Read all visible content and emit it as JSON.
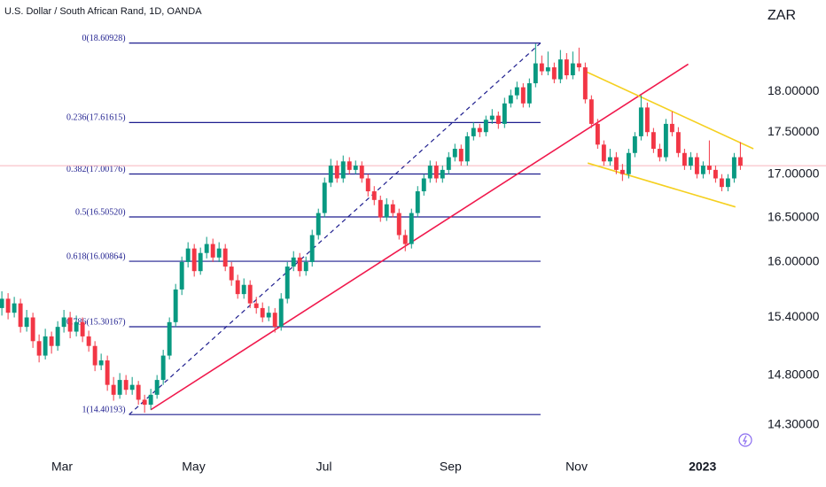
{
  "chart_data": {
    "type": "candlestick",
    "title": "U.S. Dollar / South African Rand, 1D, OANDA",
    "currency": "ZAR",
    "log_scale": true,
    "up_color": "#089981",
    "down_color": "#f23645",
    "last_line_color": "#f7b5bd",
    "xlim": [
      -0.3,
      121.8
    ],
    "xticks": [
      {
        "value": 9.7,
        "label": "Mar"
      },
      {
        "value": 30.9,
        "label": "May"
      },
      {
        "value": 51.9,
        "label": "Jul"
      },
      {
        "value": 72.3,
        "label": "Sep"
      },
      {
        "value": 92.6,
        "label": "Nov"
      },
      {
        "value": 112.9,
        "label": "2023"
      }
    ],
    "ylim": [
      13.7,
      19.17
    ],
    "yticks": [
      {
        "value": 18,
        "label": "18.00000"
      },
      {
        "value": 17.5,
        "label": "17.50000"
      },
      {
        "value": 17,
        "label": "17.00000"
      },
      {
        "value": 16.5,
        "label": "16.50000"
      },
      {
        "value": 16,
        "label": "16.00000"
      },
      {
        "value": 15.4,
        "label": "15.40000"
      },
      {
        "value": 14.8,
        "label": "14.80000"
      },
      {
        "value": 14.3,
        "label": "14.30000"
      }
    ],
    "candles": [
      [
        15.5,
        15.68,
        15.42,
        15.6
      ],
      [
        15.6,
        15.66,
        15.38,
        15.45
      ],
      [
        15.45,
        15.62,
        15.4,
        15.55
      ],
      [
        15.55,
        15.6,
        15.24,
        15.3
      ],
      [
        15.3,
        15.48,
        15.25,
        15.4
      ],
      [
        15.4,
        15.45,
        15.08,
        15.15
      ],
      [
        15.15,
        15.22,
        14.93,
        15.0
      ],
      [
        15.0,
        15.28,
        14.96,
        15.2
      ],
      [
        15.2,
        15.25,
        15.02,
        15.1
      ],
      [
        15.1,
        15.36,
        15.05,
        15.3
      ],
      [
        15.3,
        15.48,
        15.24,
        15.4
      ],
      [
        15.4,
        15.46,
        15.18,
        15.25
      ],
      [
        15.25,
        15.42,
        15.2,
        15.35
      ],
      [
        15.35,
        15.4,
        15.14,
        15.2
      ],
      [
        15.2,
        15.26,
        15.04,
        15.1
      ],
      [
        15.1,
        15.15,
        14.84,
        14.9
      ],
      [
        14.9,
        15.02,
        14.85,
        14.95
      ],
      [
        14.95,
        15.0,
        14.64,
        14.7
      ],
      [
        14.7,
        14.78,
        14.54,
        14.6
      ],
      [
        14.6,
        14.82,
        14.56,
        14.75
      ],
      [
        14.75,
        14.8,
        14.6,
        14.65
      ],
      [
        14.65,
        14.78,
        14.6,
        14.7
      ],
      [
        14.7,
        14.74,
        14.5,
        14.55
      ],
      [
        14.55,
        14.6,
        14.42,
        14.5
      ],
      [
        14.5,
        14.66,
        14.45,
        14.6
      ],
      [
        14.6,
        14.8,
        14.56,
        14.75
      ],
      [
        14.75,
        15.06,
        14.7,
        15.0
      ],
      [
        15.0,
        15.4,
        14.96,
        15.35
      ],
      [
        15.35,
        15.76,
        15.3,
        15.7
      ],
      [
        15.7,
        16.06,
        15.64,
        16.0
      ],
      [
        16.0,
        16.22,
        15.94,
        16.15
      ],
      [
        16.15,
        16.2,
        15.84,
        15.9
      ],
      [
        15.9,
        16.16,
        15.86,
        16.1
      ],
      [
        16.1,
        16.28,
        16.04,
        16.2
      ],
      [
        16.2,
        16.26,
        16.0,
        16.05
      ],
      [
        16.05,
        16.22,
        16.0,
        16.15
      ],
      [
        16.15,
        16.2,
        15.9,
        15.95
      ],
      [
        15.95,
        16.0,
        15.74,
        15.8
      ],
      [
        15.8,
        15.86,
        15.6,
        15.65
      ],
      [
        15.65,
        15.82,
        15.6,
        15.75
      ],
      [
        15.75,
        15.8,
        15.5,
        15.55
      ],
      [
        15.55,
        15.62,
        15.44,
        15.5
      ],
      [
        15.5,
        15.56,
        15.35,
        15.4
      ],
      [
        15.4,
        15.52,
        15.36,
        15.45
      ],
      [
        15.45,
        15.5,
        15.24,
        15.3
      ],
      [
        15.3,
        15.66,
        15.26,
        15.6
      ],
      [
        15.6,
        16.0,
        15.55,
        15.95
      ],
      [
        15.95,
        16.12,
        15.9,
        16.05
      ],
      [
        16.05,
        16.1,
        15.84,
        15.9
      ],
      [
        15.9,
        16.06,
        15.85,
        16.0
      ],
      [
        16.0,
        16.36,
        15.95,
        16.3
      ],
      [
        16.3,
        16.6,
        16.25,
        16.55
      ],
      [
        16.55,
        16.96,
        16.5,
        16.9
      ],
      [
        16.9,
        17.18,
        16.85,
        17.1
      ],
      [
        17.1,
        17.16,
        16.9,
        16.95
      ],
      [
        16.95,
        17.22,
        16.9,
        17.15
      ],
      [
        17.15,
        17.2,
        17.0,
        17.05
      ],
      [
        17.05,
        17.16,
        17.0,
        17.1
      ],
      [
        17.1,
        17.15,
        16.9,
        16.95
      ],
      [
        16.95,
        17.0,
        16.74,
        16.8
      ],
      [
        16.8,
        16.86,
        16.64,
        16.7
      ],
      [
        16.7,
        16.75,
        16.45,
        16.5
      ],
      [
        16.5,
        16.72,
        16.46,
        16.65
      ],
      [
        16.65,
        16.7,
        16.5,
        16.55
      ],
      [
        16.55,
        16.6,
        16.25,
        16.3
      ],
      [
        16.3,
        16.36,
        16.12,
        16.2
      ],
      [
        16.2,
        16.6,
        16.15,
        16.55
      ],
      [
        16.55,
        16.86,
        16.5,
        16.8
      ],
      [
        16.8,
        17.0,
        16.75,
        16.95
      ],
      [
        16.95,
        17.16,
        16.9,
        17.1
      ],
      [
        17.1,
        17.15,
        16.9,
        16.95
      ],
      [
        16.95,
        17.1,
        16.9,
        17.05
      ],
      [
        17.05,
        17.26,
        17.0,
        17.2
      ],
      [
        17.2,
        17.36,
        17.15,
        17.3
      ],
      [
        17.3,
        17.35,
        17.1,
        17.15
      ],
      [
        17.15,
        17.5,
        17.1,
        17.45
      ],
      [
        17.45,
        17.62,
        17.4,
        17.55
      ],
      [
        17.55,
        17.6,
        17.44,
        17.5
      ],
      [
        17.5,
        17.7,
        17.45,
        17.65
      ],
      [
        17.65,
        17.78,
        17.6,
        17.7
      ],
      [
        17.7,
        17.75,
        17.54,
        17.6
      ],
      [
        17.6,
        17.92,
        17.55,
        17.85
      ],
      [
        17.85,
        18.02,
        17.8,
        17.95
      ],
      [
        17.95,
        18.12,
        17.9,
        18.05
      ],
      [
        18.05,
        18.1,
        17.8,
        17.85
      ],
      [
        17.85,
        18.16,
        17.8,
        18.1
      ],
      [
        18.1,
        18.6,
        18.05,
        18.35
      ],
      [
        18.35,
        18.45,
        18.2,
        18.25
      ],
      [
        18.25,
        18.5,
        18.2,
        18.3
      ],
      [
        18.3,
        18.36,
        18.1,
        18.15
      ],
      [
        18.15,
        18.52,
        18.1,
        18.4
      ],
      [
        18.4,
        18.48,
        18.15,
        18.2
      ],
      [
        18.2,
        18.5,
        18.15,
        18.35
      ],
      [
        18.35,
        18.55,
        18.25,
        18.3
      ],
      [
        18.3,
        18.36,
        17.85,
        17.9
      ],
      [
        17.9,
        17.95,
        17.55,
        17.6
      ],
      [
        17.6,
        17.66,
        17.3,
        17.35
      ],
      [
        17.35,
        17.4,
        17.1,
        17.15
      ],
      [
        17.15,
        17.3,
        17.1,
        17.2
      ],
      [
        17.2,
        17.26,
        17.0,
        17.05
      ],
      [
        17.05,
        17.12,
        16.92,
        17.0
      ],
      [
        17.0,
        17.3,
        16.95,
        17.25
      ],
      [
        17.25,
        17.5,
        17.2,
        17.45
      ],
      [
        17.45,
        17.95,
        17.4,
        17.8
      ],
      [
        17.8,
        17.86,
        17.45,
        17.5
      ],
      [
        17.5,
        17.55,
        17.25,
        17.3
      ],
      [
        17.3,
        17.36,
        17.15,
        17.2
      ],
      [
        17.2,
        17.66,
        17.15,
        17.6
      ],
      [
        17.6,
        17.75,
        17.45,
        17.5
      ],
      [
        17.5,
        17.56,
        17.2,
        17.25
      ],
      [
        17.25,
        17.3,
        17.05,
        17.1
      ],
      [
        17.1,
        17.26,
        17.05,
        17.2
      ],
      [
        17.2,
        17.25,
        16.95,
        17.0
      ],
      [
        17.0,
        17.15,
        16.95,
        17.1
      ],
      [
        17.1,
        17.4,
        17.0,
        17.05
      ],
      [
        17.05,
        17.1,
        16.9,
        16.95
      ],
      [
        16.95,
        17.0,
        16.8,
        16.85
      ],
      [
        16.85,
        17.0,
        16.8,
        16.95
      ],
      [
        16.95,
        17.25,
        16.9,
        17.2
      ],
      [
        17.2,
        17.38,
        17.05,
        17.1
      ]
    ],
    "fib": {
      "color": "#1f1f8f",
      "anchors": [
        [
          20.5,
          14.40193
        ],
        [
          86.8,
          18.60928
        ]
      ],
      "levels": [
        {
          "value": 18.60928,
          "label": "0(18.60928)"
        },
        {
          "value": 17.61615,
          "label": "0.236(17.61615)"
        },
        {
          "value": 17.00176,
          "label": "0.382(17.00176)"
        },
        {
          "value": 16.5052,
          "label": "0.5(16.50520)"
        },
        {
          "value": 16.00864,
          "label": "0.618(16.00864)"
        },
        {
          "value": 15.30167,
          "label": "0.786(15.30167)"
        },
        {
          "value": 14.40193,
          "label": "1(14.40193)"
        }
      ]
    },
    "trendlines": [
      {
        "color": "#f0184c",
        "points": [
          [
            24,
            14.45
          ],
          [
            110.6,
            18.34
          ]
        ]
      },
      {
        "color": "#f5d020",
        "points": [
          [
            94.0,
            18.25
          ],
          [
            121.1,
            17.3
          ]
        ]
      },
      {
        "color": "#f5d020",
        "points": [
          [
            94.4,
            17.13
          ],
          [
            118.2,
            16.62
          ]
        ]
      }
    ]
  }
}
